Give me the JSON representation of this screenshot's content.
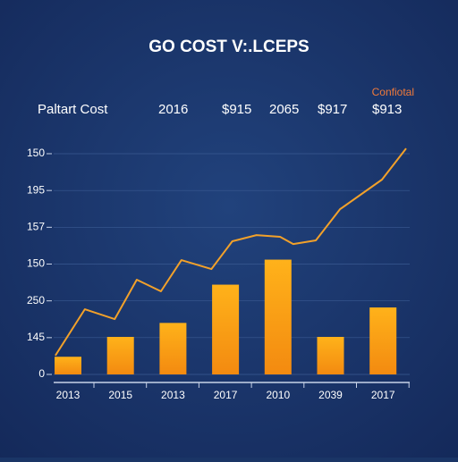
{
  "chart_data": {
    "type": "bar",
    "title": "GO COST V:.LCEPS",
    "annotations": [
      "Paltart Cost",
      "2016",
      "$915",
      "2065",
      "$917",
      "$913"
    ],
    "corner_label": "Confiotal",
    "categories": [
      "2013",
      "2015",
      "2013",
      "2017",
      "2010",
      "2039",
      "2017"
    ],
    "series": [
      {
        "type": "bar",
        "color": "#f7a01a",
        "values": [
          12,
          25.5,
          35,
          61,
          78,
          25.5,
          45.5
        ]
      },
      {
        "type": "line",
        "color": "#f2a12a",
        "x": [
          -0.24,
          0.32,
          0.89,
          1.31,
          1.77,
          2.16,
          2.73,
          3.13,
          3.59,
          4.04,
          4.29,
          4.72,
          5.18,
          5.98,
          6.44
        ],
        "values": [
          12.8,
          44.3,
          37.6,
          64.4,
          56.5,
          77.7,
          71.6,
          90.5,
          94.7,
          93.5,
          88.6,
          91.1,
          112.3,
          132.4,
          153.6
        ]
      }
    ],
    "ylim": [
      0,
      150
    ],
    "yticks": [
      0,
      {
        "value": 25,
        "label": "145"
      },
      {
        "value": 50,
        "label": "250"
      },
      {
        "value": 75,
        "label": "150"
      },
      {
        "value": 100,
        "label": "157"
      },
      {
        "value": 125,
        "label": "195"
      },
      150
    ],
    "grid": true
  }
}
